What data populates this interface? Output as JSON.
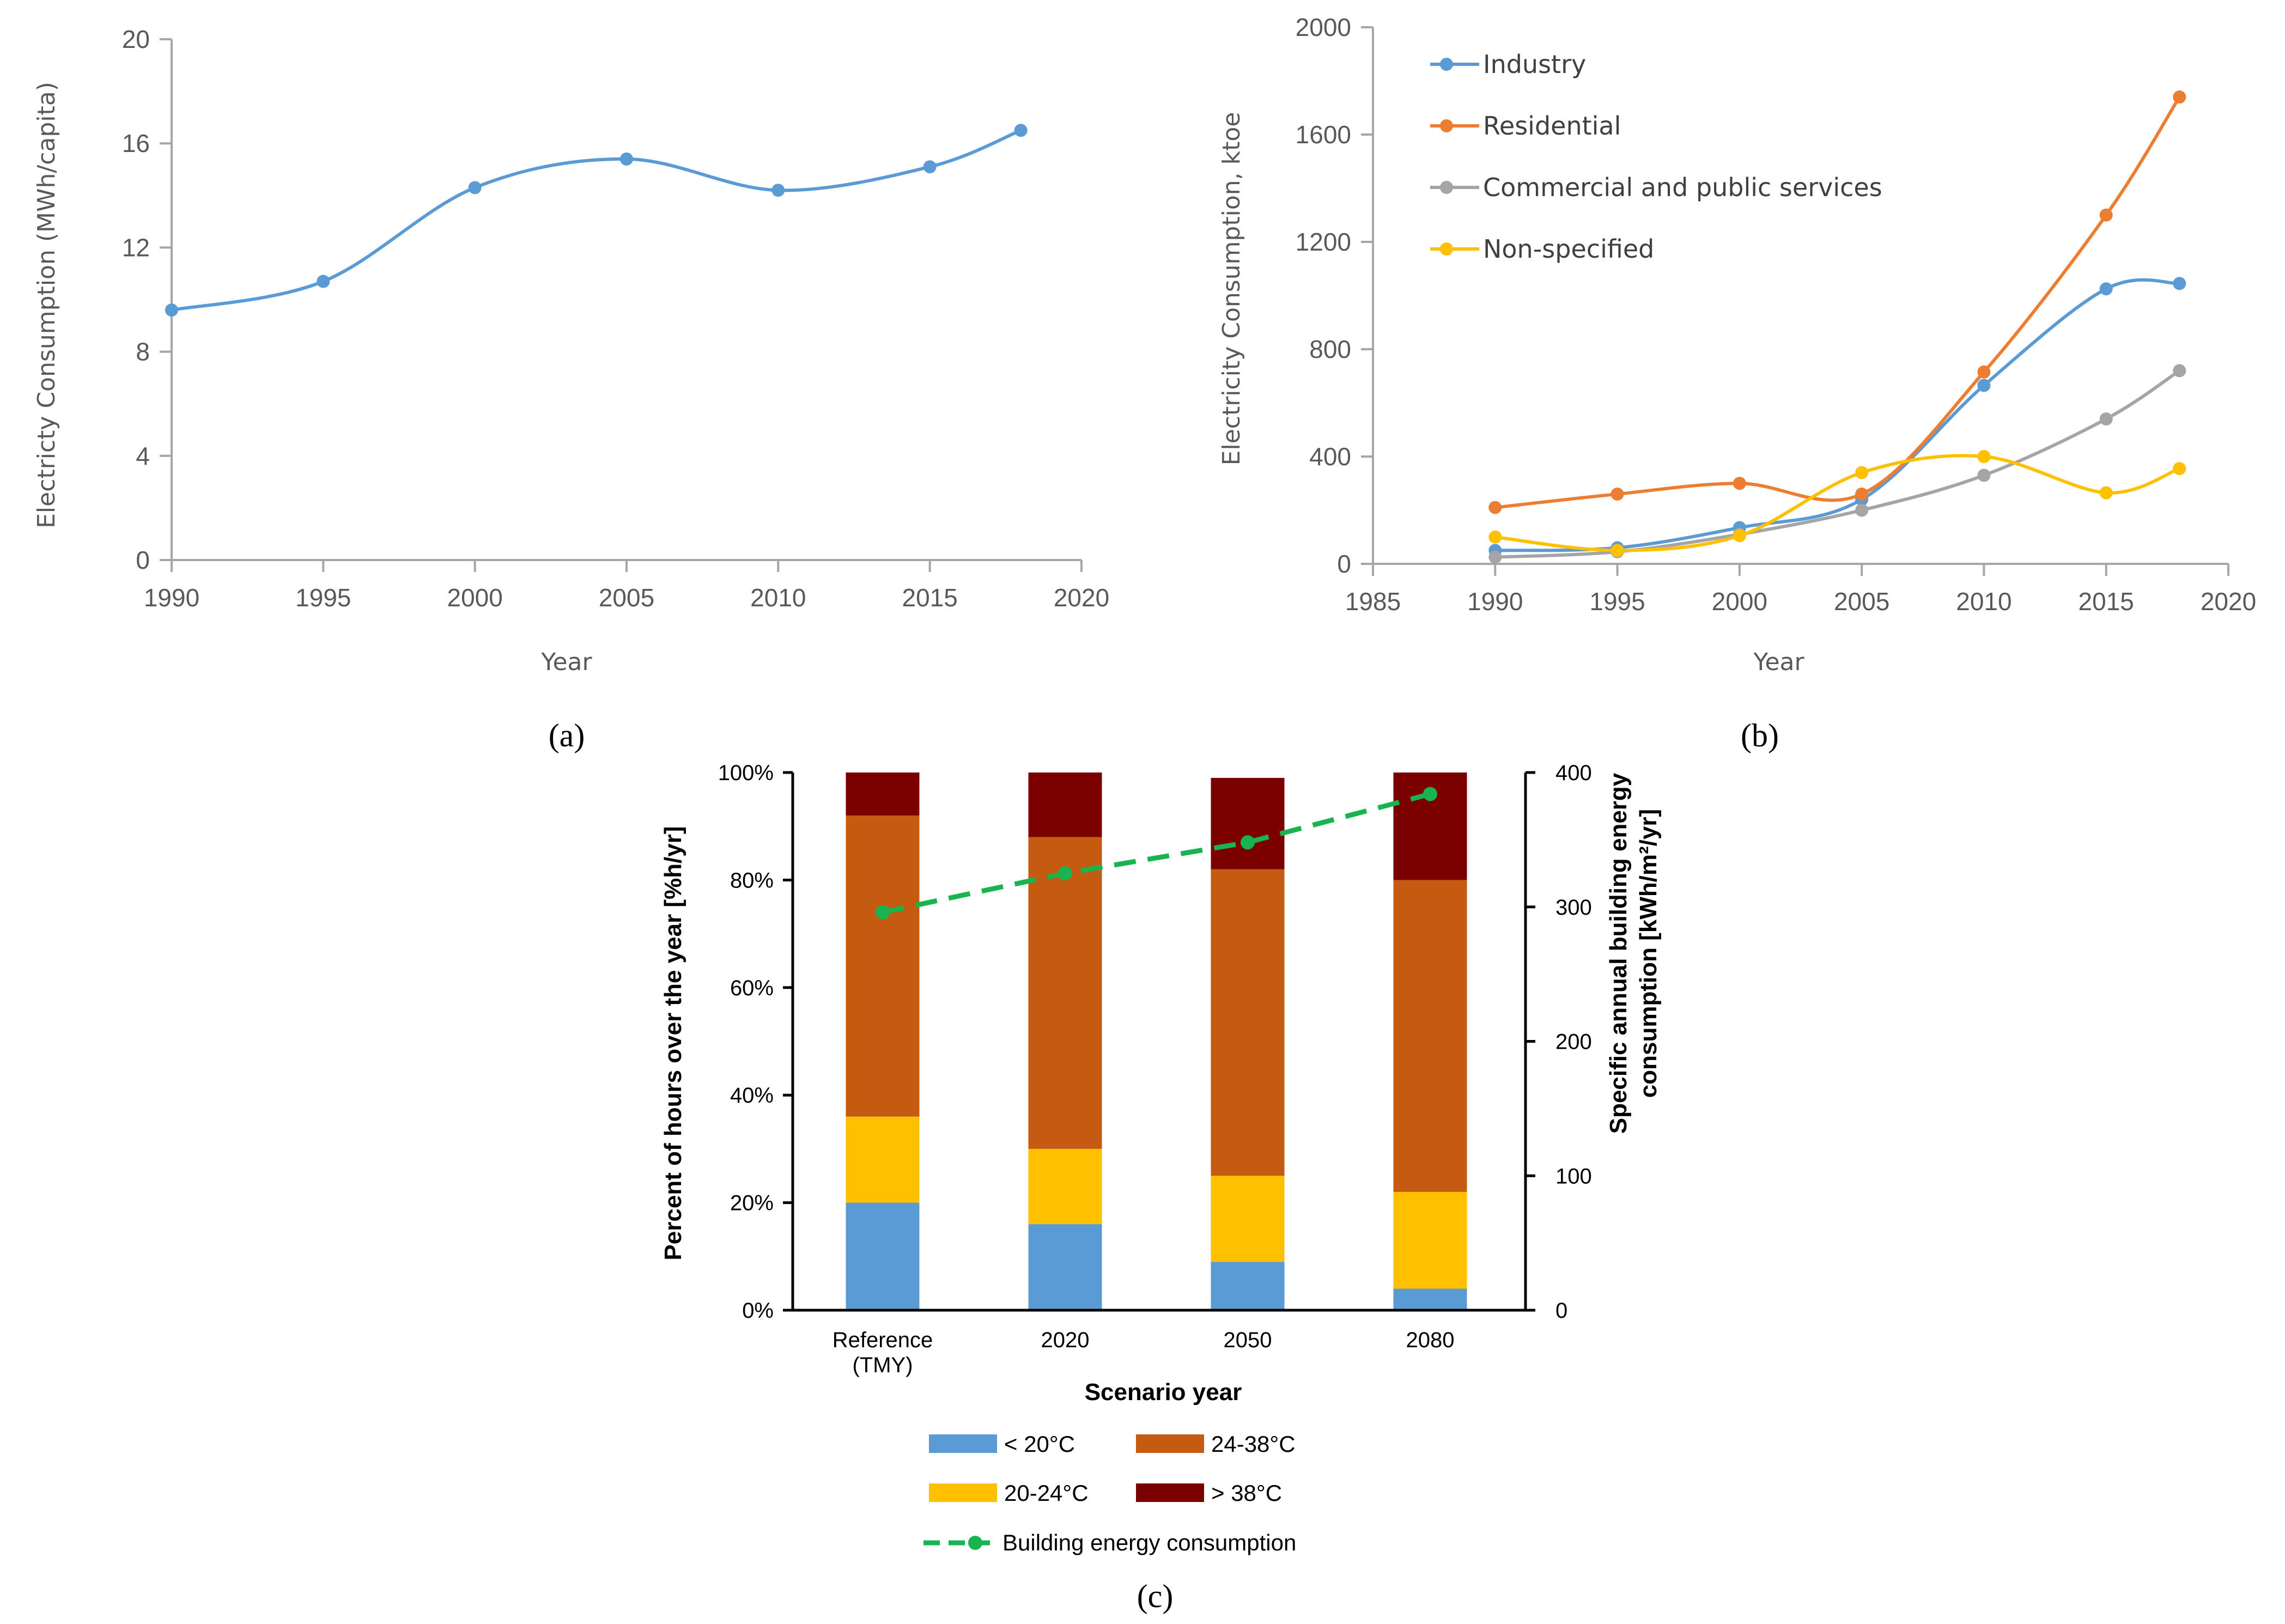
{
  "chart_data": [
    {
      "id": "a",
      "type": "line",
      "caption": "(a)",
      "xlabel": "Year",
      "ylabel": "Electricty Consumption (MWh/capita)",
      "xlim": [
        1990,
        2020
      ],
      "ylim": [
        0,
        20
      ],
      "xticks": [
        "1990",
        "1995",
        "2000",
        "2005",
        "2010",
        "2015",
        "2020"
      ],
      "yticks": [
        "0",
        "4",
        "8",
        "12",
        "16",
        "20"
      ],
      "series": [
        {
          "name": "Electricity consumption",
          "color": "#5b9bd5",
          "x": [
            1990,
            1995,
            2000,
            2005,
            2010,
            2015,
            2018
          ],
          "y": [
            9.6,
            10.7,
            14.3,
            15.4,
            14.2,
            15.1,
            16.5
          ]
        }
      ]
    },
    {
      "id": "b",
      "type": "line",
      "caption": "(b)",
      "xlabel": "Year",
      "ylabel": "Electricity Consumption, ktoe",
      "xlim": [
        1985,
        2020
      ],
      "ylim": [
        0,
        2000
      ],
      "xticks": [
        "1985",
        "1990",
        "1995",
        "2000",
        "2005",
        "2010",
        "2015",
        "2020"
      ],
      "yticks": [
        "0",
        "400",
        "800",
        "1200",
        "1600",
        "2000"
      ],
      "legend_position": "top-left",
      "series": [
        {
          "name": "Industry",
          "color": "#5b9bd5",
          "x": [
            1990,
            1995,
            2000,
            2005,
            2010,
            2015,
            2018
          ],
          "y": [
            50,
            60,
            135,
            240,
            665,
            1025,
            1045
          ]
        },
        {
          "name": "Residential",
          "color": "#ed7d31",
          "x": [
            1990,
            1995,
            2000,
            2005,
            2010,
            2015,
            2018
          ],
          "y": [
            210,
            260,
            300,
            260,
            715,
            1300,
            1740
          ]
        },
        {
          "name": "Commercial and public services",
          "color": "#a5a5a5",
          "x": [
            1990,
            1995,
            2000,
            2005,
            2010,
            2015,
            2018
          ],
          "y": [
            25,
            45,
            110,
            200,
            330,
            540,
            720
          ]
        },
        {
          "name": "Non-specified",
          "color": "#ffc000",
          "x": [
            1990,
            1995,
            2000,
            2005,
            2010,
            2015,
            2018
          ],
          "y": [
            100,
            50,
            105,
            340,
            400,
            265,
            355
          ]
        }
      ]
    },
    {
      "id": "c",
      "type": "bar",
      "stacked": true,
      "caption": "(c)",
      "xlabel": "Scenario year",
      "ylabel": "Percent of hours over the year [%h/yr]",
      "y2label_line1": "Specific annual building energy",
      "y2label_line2": "consumption [kWh/m²/yr]",
      "categories": [
        [
          "Reference",
          "(TMY)"
        ],
        [
          "2020"
        ],
        [
          "2050"
        ],
        [
          "2080"
        ]
      ],
      "ylim": [
        0,
        100
      ],
      "y2lim": [
        0,
        400
      ],
      "yticks": [
        "0%",
        "20%",
        "40%",
        "60%",
        "80%",
        "100%"
      ],
      "y2ticks": [
        "0",
        "100",
        "200",
        "300",
        "400"
      ],
      "series": [
        {
          "name": "< 20°C",
          "color": "#5b9bd5",
          "values": [
            20,
            16,
            9,
            4
          ]
        },
        {
          "name": "20-24°C",
          "color": "#ffc000",
          "values": [
            16,
            14,
            16,
            18
          ]
        },
        {
          "name": "24-38°C",
          "color": "#c55a11",
          "values": [
            56,
            58,
            57,
            58
          ]
        },
        {
          "name": "> 38°C",
          "color": "#7b0000",
          "values": [
            8,
            12,
            17,
            20
          ]
        }
      ],
      "line_series": {
        "name": "Building energy consumption",
        "color": "#17b44f",
        "axis": "right",
        "values": [
          296,
          325,
          348,
          384
        ]
      }
    }
  ]
}
